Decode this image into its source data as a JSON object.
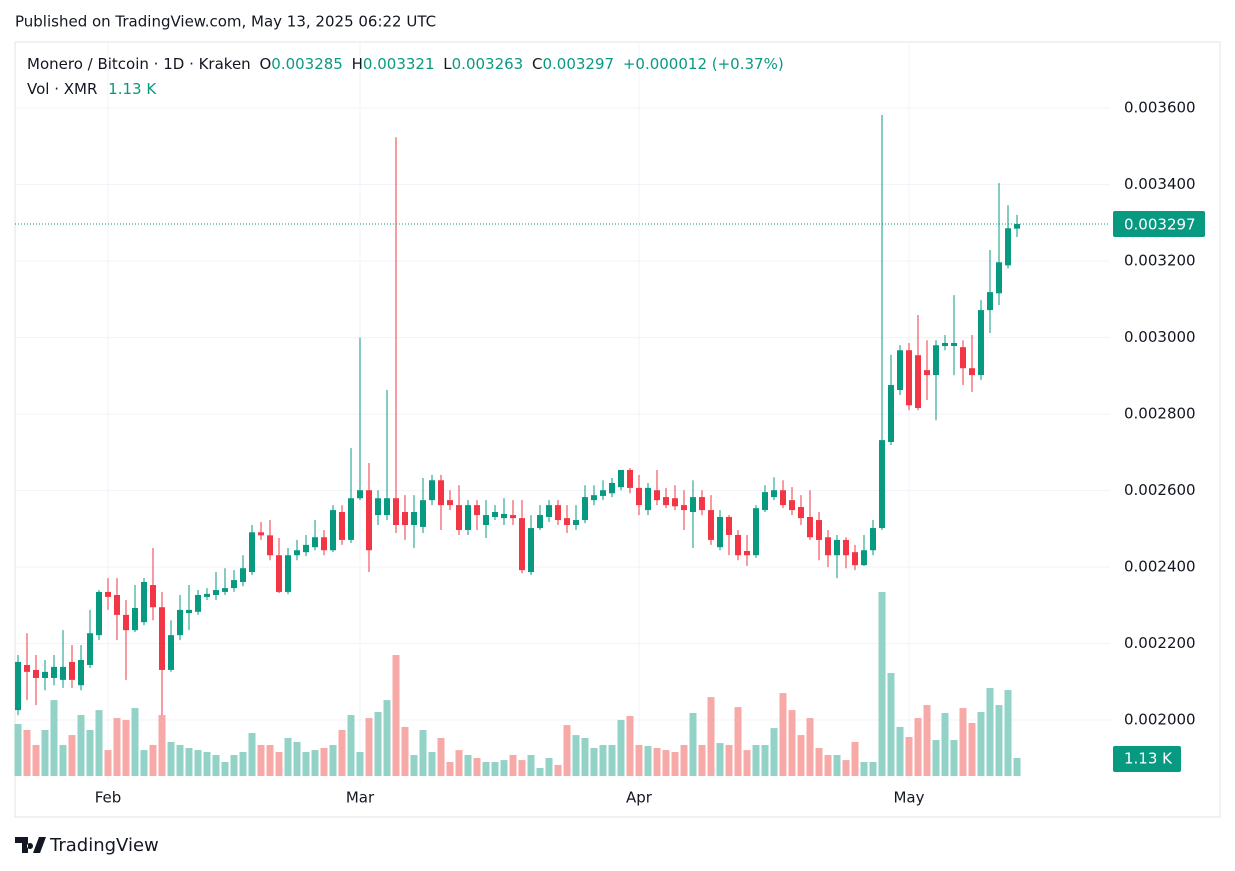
{
  "published": "Published on TradingView.com, May 13, 2025 06:22 UTC",
  "brand": "TradingView",
  "chart_data": {
    "type": "candlestick",
    "header": {
      "symbol": "Monero / Bitcoin · 1D · Kraken",
      "open_label": "O",
      "high_label": "H",
      "low_label": "L",
      "close_label": "C",
      "change": "+0.000012 (+0.37%)",
      "volume_label": "Vol · XMR"
    },
    "categories": [
      null,
      null,
      null,
      null,
      null,
      null,
      null,
      null,
      null,
      null,
      "Feb",
      null,
      null,
      null,
      null,
      null,
      null,
      null,
      null,
      null,
      null,
      null,
      null,
      null,
      null,
      null,
      null,
      null,
      null,
      null,
      null,
      null,
      null,
      null,
      null,
      null,
      null,
      null,
      "Mar",
      null,
      null,
      null,
      null,
      null,
      null,
      null,
      null,
      null,
      null,
      null,
      null,
      null,
      null,
      null,
      null,
      null,
      null,
      null,
      null,
      null,
      null,
      null,
      null,
      null,
      null,
      null,
      null,
      null,
      null,
      "Apr",
      null,
      null,
      null,
      null,
      null,
      null,
      null,
      null,
      null,
      null,
      null,
      null,
      null,
      null,
      null,
      null,
      null,
      null,
      null,
      null,
      null,
      null,
      null,
      null,
      null,
      null,
      null,
      null,
      null,
      "May",
      null,
      null,
      null,
      null,
      null,
      null,
      null,
      null,
      null,
      null,
      null,
      null
    ],
    "open": [
      0.002026,
      0.002144,
      0.002131,
      0.00211,
      0.00211,
      0.002105,
      0.002152,
      0.002091,
      0.002144,
      0.002222,
      0.002335,
      0.002327,
      0.002275,
      0.002235,
      0.002256,
      0.002353,
      0.002295,
      0.002131,
      0.002222,
      0.00228,
      0.002283,
      0.002322,
      0.002327,
      0.002335,
      0.002345,
      0.002361,
      0.002387,
      0.002491,
      0.002483,
      0.002431,
      0.002335,
      0.002431,
      0.002439,
      0.002452,
      0.002478,
      0.002444,
      0.002544,
      0.002471,
      0.00258,
      0.002601,
      0.002536,
      0.002536,
      0.00258,
      0.002544,
      0.00251,
      0.002505,
      0.002575,
      0.002627,
      0.002575,
      0.002562,
      0.002497,
      0.002562,
      0.00251,
      0.002531,
      0.002528,
      0.002536,
      0.002528,
      0.002387,
      0.002502,
      0.002531,
      0.002562,
      0.002528,
      0.00251,
      0.002523,
      0.002575,
      0.002586,
      0.002593,
      0.002609,
      0.002654,
      0.002607,
      0.002549,
      0.002601,
      0.002583,
      0.00258,
      0.002562,
      0.002544,
      0.002583,
      0.002549,
      0.002452,
      0.002531,
      0.002484,
      0.002442,
      0.002431,
      0.002549,
      0.002583,
      0.002601,
      0.002575,
      0.002557,
      0.002531,
      0.002523,
      0.002478,
      0.002431,
      0.002471,
      0.002439,
      0.002405,
      0.002444,
      0.002502,
      0.002727,
      0.002863,
      0.002967,
      0.002954,
      0.002915,
      0.002902,
      0.002978,
      0.002978,
      0.002975,
      0.00292,
      0.002902,
      0.003072,
      0.003116,
      0.003189,
      0.003285
    ],
    "high": [
      0.00217,
      0.002227,
      0.00217,
      0.002157,
      0.00217,
      0.002235,
      0.002196,
      0.002196,
      0.002288,
      0.00234,
      0.002371,
      0.002371,
      0.002314,
      0.002353,
      0.002371,
      0.00245,
      0.002335,
      0.002261,
      0.002327,
      0.002353,
      0.00234,
      0.002345,
      0.002387,
      0.002397,
      0.002392,
      0.002431,
      0.00251,
      0.002518,
      0.002523,
      0.002476,
      0.00245,
      0.002471,
      0.002484,
      0.002523,
      0.002497,
      0.002562,
      0.002562,
      0.002711,
      0.003,
      0.002672,
      0.002601,
      0.002863,
      0.003524,
      0.002588,
      0.002588,
      0.002633,
      0.002641,
      0.002641,
      0.002601,
      0.002614,
      0.002575,
      0.002575,
      0.002575,
      0.002562,
      0.00258,
      0.002575,
      0.002575,
      0.002536,
      0.002562,
      0.002575,
      0.002575,
      0.002562,
      0.002562,
      0.002614,
      0.002614,
      0.002627,
      0.002633,
      0.002654,
      0.002659,
      0.002641,
      0.00262,
      0.002654,
      0.002607,
      0.002614,
      0.002601,
      0.002627,
      0.002601,
      0.002588,
      0.002549,
      0.002536,
      0.002497,
      0.002484,
      0.002562,
      0.002614,
      0.002635,
      0.002627,
      0.002609,
      0.002588,
      0.002601,
      0.002544,
      0.002497,
      0.002484,
      0.002478,
      0.002458,
      0.002484,
      0.002523,
      0.003582,
      0.002955,
      0.00298,
      0.002986,
      0.003059,
      0.002993,
      0.002993,
      0.003007,
      0.003111,
      0.002993,
      0.003007,
      0.003098,
      0.003229,
      0.003404,
      0.003346,
      0.003321
    ],
    "low": [
      0.002013,
      0.002052,
      0.002039,
      0.002078,
      0.002091,
      0.002084,
      0.002084,
      0.002078,
      0.002136,
      0.002209,
      0.002288,
      0.002209,
      0.002105,
      0.00223,
      0.002248,
      0.002261,
      0.002013,
      0.002126,
      0.002209,
      0.002235,
      0.002275,
      0.002314,
      0.002314,
      0.002327,
      0.002335,
      0.00235,
      0.002379,
      0.002471,
      0.002418,
      0.002332,
      0.002329,
      0.002418,
      0.002429,
      0.002444,
      0.002431,
      0.002439,
      0.002458,
      0.002463,
      0.002575,
      0.002387,
      0.00251,
      0.002523,
      0.002489,
      0.002471,
      0.00245,
      0.002489,
      0.002562,
      0.002497,
      0.002549,
      0.002484,
      0.002484,
      0.002497,
      0.002476,
      0.002523,
      0.00251,
      0.00251,
      0.002384,
      0.002379,
      0.002497,
      0.002518,
      0.00251,
      0.002489,
      0.002497,
      0.002515,
      0.002562,
      0.002575,
      0.002583,
      0.002601,
      0.002593,
      0.002536,
      0.002536,
      0.002562,
      0.002554,
      0.002549,
      0.002497,
      0.00245,
      0.002536,
      0.002458,
      0.002444,
      0.002431,
      0.002418,
      0.002403,
      0.002424,
      0.002544,
      0.002575,
      0.002554,
      0.002536,
      0.00251,
      0.002471,
      0.002418,
      0.0024,
      0.002371,
      0.002397,
      0.002392,
      0.002403,
      0.002431,
      0.002497,
      0.002719,
      0.00285,
      0.00281,
      0.00281,
      0.002837,
      0.002784,
      0.002967,
      0.002902,
      0.002876,
      0.002858,
      0.002889,
      0.003012,
      0.003085,
      0.003181,
      0.003263
    ],
    "close": [
      0.002152,
      0.002126,
      0.00211,
      0.002126,
      0.002139,
      0.002139,
      0.002105,
      0.002157,
      0.002227,
      0.002335,
      0.002322,
      0.002275,
      0.002235,
      0.002293,
      0.002361,
      0.002295,
      0.002131,
      0.002222,
      0.002288,
      0.002288,
      0.002327,
      0.00233,
      0.00234,
      0.002345,
      0.002366,
      0.002397,
      0.002491,
      0.002483,
      0.002431,
      0.002335,
      0.002431,
      0.002444,
      0.002458,
      0.002478,
      0.002444,
      0.002549,
      0.002471,
      0.00258,
      0.002601,
      0.002444,
      0.00258,
      0.00258,
      0.00251,
      0.00251,
      0.002544,
      0.002575,
      0.002627,
      0.002562,
      0.002562,
      0.002497,
      0.002562,
      0.002536,
      0.002536,
      0.002544,
      0.002539,
      0.002528,
      0.002392,
      0.002502,
      0.002536,
      0.002562,
      0.002523,
      0.00251,
      0.002523,
      0.002583,
      0.002588,
      0.002601,
      0.00262,
      0.002654,
      0.002607,
      0.002562,
      0.002607,
      0.002575,
      0.002562,
      0.002559,
      0.002549,
      0.002583,
      0.002549,
      0.002471,
      0.002531,
      0.002484,
      0.002431,
      0.002431,
      0.002554,
      0.002596,
      0.002601,
      0.002562,
      0.002549,
      0.002528,
      0.002478,
      0.002471,
      0.002431,
      0.002471,
      0.002431,
      0.002405,
      0.002444,
      0.002502,
      0.002732,
      0.002876,
      0.002967,
      0.002823,
      0.002816,
      0.002902,
      0.00298,
      0.002986,
      0.002986,
      0.00292,
      0.002902,
      0.003072,
      0.003119,
      0.003197,
      0.003286,
      0.003297
    ],
    "volume": [
      3270,
      2890,
      1950,
      2890,
      4770,
      1950,
      2570,
      3830,
      2890,
      4140,
      1630,
      3640,
      3520,
      4270,
      1630,
      1950,
      3830,
      2140,
      1950,
      1760,
      1630,
      1510,
      1320,
      880,
      1320,
      1510,
      2700,
      1950,
      1950,
      1510,
      2390,
      2140,
      1510,
      1630,
      1760,
      1950,
      2890,
      3830,
      1510,
      3640,
      4020,
      4770,
      7600,
      3080,
      1320,
      2890,
      1510,
      2390,
      880,
      1630,
      1320,
      1130,
      880,
      880,
      1000,
      1320,
      1000,
      1320,
      500,
      1130,
      690,
      3200,
      2570,
      2390,
      1760,
      1950,
      1950,
      3520,
      3770,
      1950,
      1880,
      1760,
      1630,
      1510,
      1950,
      3960,
      1950,
      4960,
      2070,
      1950,
      4330,
      1630,
      1950,
      1950,
      3010,
      5210,
      4140,
      2570,
      3640,
      1760,
      1320,
      1320,
      1000,
      2140,
      880,
      880,
      11560,
      6470,
      3080,
      2450,
      3640,
      4460,
      2260,
      3960,
      2260,
      4270,
      3330,
      4020,
      5530,
      4460,
      5400,
      1130
    ],
    "volume_value_labels": [
      null,
      null,
      null,
      null,
      null,
      null,
      null,
      null,
      null,
      null,
      null,
      null,
      null,
      null,
      null,
      null,
      null,
      null,
      null,
      null,
      null,
      null,
      null,
      null,
      null,
      null,
      null,
      null,
      null,
      null,
      null,
      null,
      null,
      null,
      null,
      null,
      null,
      null,
      null,
      null,
      null,
      null,
      null,
      null,
      null,
      null,
      null,
      null,
      null,
      null,
      null,
      null,
      null,
      null,
      null,
      null,
      null,
      null,
      null,
      null,
      null,
      null,
      null,
      null,
      null,
      null,
      null,
      null,
      null,
      null,
      null,
      null,
      null,
      null,
      null,
      null,
      null,
      null,
      null,
      null,
      null,
      null,
      null,
      null,
      null,
      null,
      null,
      null,
      null,
      null,
      null,
      null,
      null,
      null,
      null,
      null,
      null,
      null,
      null,
      null,
      null,
      null,
      null,
      null,
      null,
      null,
      null,
      null,
      null,
      null,
      null,
      "1.13 K"
    ],
    "ylim": [
      0.001838,
      0.003773
    ],
    "yticks": [
      {
        "value": 0.002,
        "label": "0.002000"
      },
      {
        "value": 0.0022,
        "label": "0.002200"
      },
      {
        "value": 0.0024,
        "label": "0.002400"
      },
      {
        "value": 0.0026,
        "label": "0.002600"
      },
      {
        "value": 0.0028,
        "label": "0.002800"
      },
      {
        "value": 0.003,
        "label": "0.003000"
      },
      {
        "value": 0.0032,
        "label": "0.003200"
      },
      {
        "value": 0.0034,
        "label": "0.003400"
      },
      {
        "value": 0.0036,
        "label": "0.003600"
      }
    ],
    "grid": true,
    "up_color": "#089981",
    "down_color": "#f23645",
    "volume_up_color": "#92d2c7",
    "volume_down_color": "#f7a9a7"
  }
}
